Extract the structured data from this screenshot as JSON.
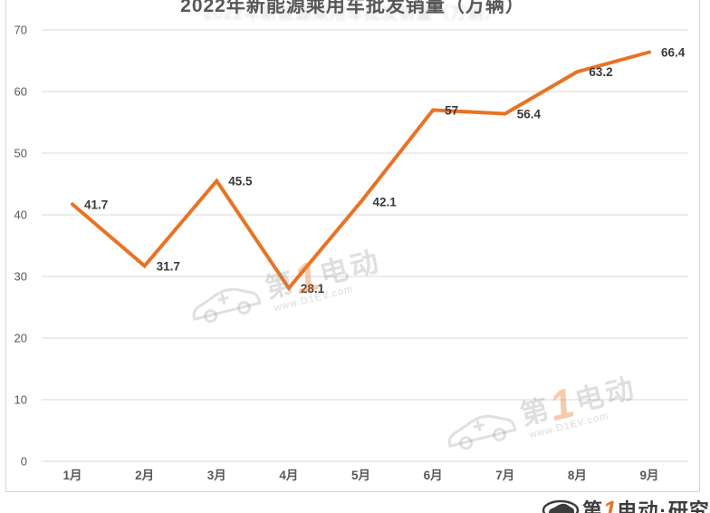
{
  "chart_data": {
    "type": "line",
    "title": "2022年新能源乘用车批发销量（万辆）",
    "categories": [
      "1月",
      "2月",
      "3月",
      "4月",
      "5月",
      "6月",
      "7月",
      "8月",
      "9月"
    ],
    "values": [
      41.7,
      31.7,
      45.5,
      28.1,
      42.1,
      57,
      56.4,
      63.2,
      66.4
    ],
    "point_labels": [
      "41.7",
      "31.7",
      "45.5",
      "28.1",
      "42.1",
      "57",
      "56.4",
      "63.2",
      "66.4"
    ],
    "xlabel": "",
    "ylabel": "",
    "ylim": [
      0,
      70
    ],
    "yticks": [
      0,
      10,
      20,
      30,
      40,
      50,
      60,
      70
    ],
    "grid": true,
    "legend_position": "none",
    "line_color": "#e87325",
    "data_label_color": "#3a3a3a",
    "axis_text_color": "#595959",
    "grid_color": "#dadada"
  },
  "watermark": {
    "brand_prefix": "第",
    "brand_one": "1",
    "brand_suffix": "电动",
    "url": "www.D1EV.com"
  },
  "footer_logo": {
    "brand_prefix": "第",
    "brand_one": "1",
    "brand_suffix": "电动",
    "separator": "·",
    "org": "研究院"
  }
}
